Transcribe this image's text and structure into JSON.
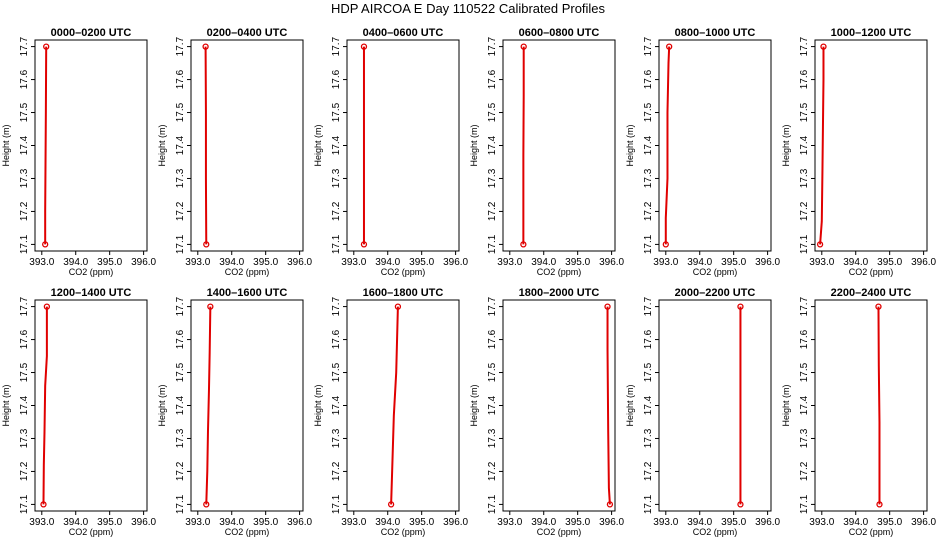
{
  "page": {
    "title": "HDP AIRCOA E  Day 110522  Calibrated Profiles"
  },
  "colors": {
    "profile": "#e00000",
    "axis": "#000000",
    "background": "#ffffff"
  },
  "chart_data": [
    {
      "type": "line",
      "title": "0000–0200 UTC",
      "xlabel": "CO2 (ppm)",
      "ylabel": "Height (m)",
      "xlim": [
        392.8,
        396.1
      ],
      "ylim": [
        17.08,
        17.72
      ],
      "xticks": [
        "393.0",
        "394.0",
        "395.0",
        "396.0"
      ],
      "yticks": [
        "17.1",
        "17.2",
        "17.3",
        "17.4",
        "17.5",
        "17.6",
        "17.7"
      ],
      "series": [
        {
          "x": [
            393.1,
            393.1,
            393.12,
            393.13
          ],
          "y": [
            17.1,
            17.2,
            17.5,
            17.7
          ]
        }
      ]
    },
    {
      "type": "line",
      "title": "0200–0400 UTC",
      "xlabel": "CO2 (ppm)",
      "ylabel": "Height (m)",
      "xlim": [
        392.8,
        396.1
      ],
      "ylim": [
        17.08,
        17.72
      ],
      "xticks": [
        "393.0",
        "394.0",
        "395.0",
        "396.0"
      ],
      "yticks": [
        "17.1",
        "17.2",
        "17.3",
        "17.4",
        "17.5",
        "17.6",
        "17.7"
      ],
      "series": [
        {
          "x": [
            393.25,
            393.24,
            393.24,
            393.23
          ],
          "y": [
            17.1,
            17.3,
            17.5,
            17.7
          ]
        }
      ]
    },
    {
      "type": "line",
      "title": "0400–0600 UTC",
      "xlabel": "CO2 (ppm)",
      "ylabel": "Height (m)",
      "xlim": [
        392.8,
        396.1
      ],
      "ylim": [
        17.08,
        17.72
      ],
      "xticks": [
        "393.0",
        "394.0",
        "395.0",
        "396.0"
      ],
      "yticks": [
        "17.1",
        "17.2",
        "17.3",
        "17.4",
        "17.5",
        "17.6",
        "17.7"
      ],
      "series": [
        {
          "x": [
            393.3,
            393.3,
            393.3,
            393.3
          ],
          "y": [
            17.1,
            17.3,
            17.5,
            17.7
          ]
        }
      ]
    },
    {
      "type": "line",
      "title": "0600–0800 UTC",
      "xlabel": "CO2 (ppm)",
      "ylabel": "Height (m)",
      "xlim": [
        392.8,
        396.1
      ],
      "ylim": [
        17.08,
        17.72
      ],
      "xticks": [
        "393.0",
        "394.0",
        "395.0",
        "396.0"
      ],
      "yticks": [
        "17.1",
        "17.2",
        "17.3",
        "17.4",
        "17.5",
        "17.6",
        "17.7"
      ],
      "series": [
        {
          "x": [
            393.4,
            393.4,
            393.41,
            393.41
          ],
          "y": [
            17.1,
            17.37,
            17.55,
            17.7
          ]
        }
      ]
    },
    {
      "type": "line",
      "title": "0800–1000 UTC",
      "xlabel": "CO2 (ppm)",
      "ylabel": "Height (m)",
      "xlim": [
        392.8,
        396.1
      ],
      "ylim": [
        17.08,
        17.72
      ],
      "xticks": [
        "393.0",
        "394.0",
        "395.0",
        "396.0"
      ],
      "yticks": [
        "17.1",
        "17.2",
        "17.3",
        "17.4",
        "17.5",
        "17.6",
        "17.7"
      ],
      "series": [
        {
          "x": [
            393.0,
            393.0,
            393.05,
            393.05,
            393.08,
            393.1
          ],
          "y": [
            17.1,
            17.18,
            17.3,
            17.5,
            17.65,
            17.7
          ]
        }
      ]
    },
    {
      "type": "line",
      "title": "1000–1200 UTC",
      "xlabel": "CO2 (ppm)",
      "ylabel": "Height (m)",
      "xlim": [
        392.8,
        396.1
      ],
      "ylim": [
        17.08,
        17.72
      ],
      "xticks": [
        "393.0",
        "394.0",
        "395.0",
        "396.0"
      ],
      "yticks": [
        "17.1",
        "17.2",
        "17.3",
        "17.4",
        "17.5",
        "17.6",
        "17.7"
      ],
      "series": [
        {
          "x": [
            392.95,
            393.0,
            393.02,
            393.05,
            393.05
          ],
          "y": [
            17.1,
            17.17,
            17.33,
            17.6,
            17.7
          ]
        }
      ]
    },
    {
      "type": "line",
      "title": "1200–1400 UTC",
      "xlabel": "CO2 (ppm)",
      "ylabel": "Height (m)",
      "xlim": [
        392.8,
        396.1
      ],
      "ylim": [
        17.08,
        17.72
      ],
      "xticks": [
        "393.0",
        "394.0",
        "395.0",
        "396.0"
      ],
      "yticks": [
        "17.1",
        "17.2",
        "17.3",
        "17.4",
        "17.5",
        "17.6",
        "17.7"
      ],
      "series": [
        {
          "x": [
            393.05,
            393.06,
            393.08,
            393.1,
            393.15,
            393.15
          ],
          "y": [
            17.1,
            17.22,
            17.32,
            17.46,
            17.55,
            17.7
          ]
        }
      ]
    },
    {
      "type": "line",
      "title": "1400–1600 UTC",
      "xlabel": "CO2 (ppm)",
      "ylabel": "Height (m)",
      "xlim": [
        392.8,
        396.1
      ],
      "ylim": [
        17.08,
        17.72
      ],
      "xticks": [
        "393.0",
        "394.0",
        "395.0",
        "396.0"
      ],
      "yticks": [
        "17.1",
        "17.2",
        "17.3",
        "17.4",
        "17.5",
        "17.6",
        "17.7"
      ],
      "series": [
        {
          "x": [
            393.25,
            393.28,
            393.3,
            393.33,
            393.35,
            393.37
          ],
          "y": [
            17.1,
            17.2,
            17.32,
            17.45,
            17.56,
            17.7
          ]
        }
      ]
    },
    {
      "type": "line",
      "title": "1600–1800 UTC",
      "xlabel": "CO2 (ppm)",
      "ylabel": "Height (m)",
      "xlim": [
        392.8,
        396.1
      ],
      "ylim": [
        17.08,
        17.72
      ],
      "xticks": [
        "393.0",
        "394.0",
        "395.0",
        "396.0"
      ],
      "yticks": [
        "17.1",
        "17.2",
        "17.3",
        "17.4",
        "17.5",
        "17.6",
        "17.7"
      ],
      "series": [
        {
          "x": [
            394.1,
            394.13,
            394.18,
            394.25,
            394.3
          ],
          "y": [
            17.1,
            17.2,
            17.37,
            17.5,
            17.7
          ]
        }
      ]
    },
    {
      "type": "line",
      "title": "1800–2000 UTC",
      "xlabel": "CO2 (ppm)",
      "ylabel": "Height (m)",
      "xlim": [
        392.8,
        396.1
      ],
      "ylim": [
        17.08,
        17.72
      ],
      "xticks": [
        "393.0",
        "394.0",
        "395.0",
        "396.0"
      ],
      "yticks": [
        "17.1",
        "17.2",
        "17.3",
        "17.4",
        "17.5",
        "17.6",
        "17.7"
      ],
      "series": [
        {
          "x": [
            395.95,
            395.92,
            395.9,
            395.88,
            395.88
          ],
          "y": [
            17.1,
            17.15,
            17.32,
            17.57,
            17.7
          ]
        }
      ]
    },
    {
      "type": "line",
      "title": "2000–2200 UTC",
      "xlabel": "CO2 (ppm)",
      "ylabel": "Height (m)",
      "xlim": [
        392.8,
        396.1
      ],
      "ylim": [
        17.08,
        17.72
      ],
      "xticks": [
        "393.0",
        "394.0",
        "395.0",
        "396.0"
      ],
      "yticks": [
        "17.1",
        "17.2",
        "17.3",
        "17.4",
        "17.5",
        "17.6",
        "17.7"
      ],
      "series": [
        {
          "x": [
            395.2,
            395.2,
            395.2
          ],
          "y": [
            17.1,
            17.4,
            17.7
          ]
        }
      ]
    },
    {
      "type": "line",
      "title": "2200–2400 UTC",
      "xlabel": "CO2 (ppm)",
      "ylabel": "Height (m)",
      "xlim": [
        392.8,
        396.1
      ],
      "ylim": [
        17.08,
        17.72
      ],
      "xticks": [
        "393.0",
        "394.0",
        "395.0",
        "396.0"
      ],
      "yticks": [
        "17.1",
        "17.2",
        "17.3",
        "17.4",
        "17.5",
        "17.6",
        "17.7"
      ],
      "series": [
        {
          "x": [
            394.7,
            394.7,
            394.68,
            394.67
          ],
          "y": [
            17.1,
            17.35,
            17.52,
            17.7
          ]
        }
      ]
    }
  ]
}
